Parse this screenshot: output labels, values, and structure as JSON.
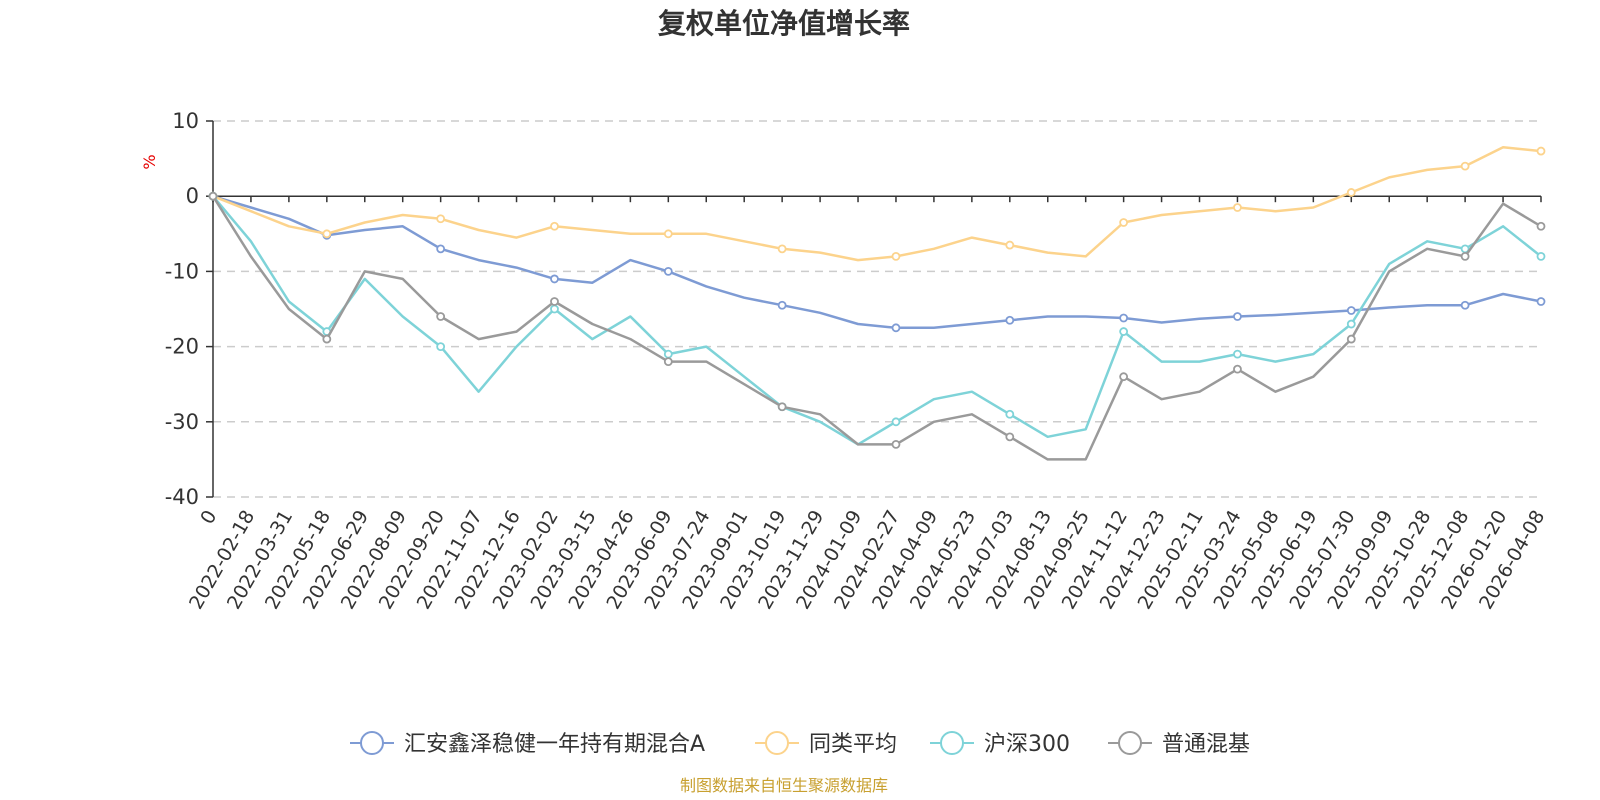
{
  "chart_data": {
    "type": "line",
    "title": "复权单位净值增长率",
    "ylabel": "%",
    "ylim": [
      -40,
      10
    ],
    "yticks": [
      10,
      0,
      -10,
      -20,
      -30,
      -40
    ],
    "grid": true,
    "legend_position": "bottom",
    "source": "制图数据来自恒生聚源数据库",
    "x_tick_labels": [
      "0",
      "2022-02-18",
      "2022-03-31",
      "2022-05-18",
      "2022-06-29",
      "2022-08-09",
      "2022-09-20",
      "2022-11-07",
      "2022-12-16",
      "2023-02-02",
      "2023-03-15",
      "2023-04-26",
      "2023-06-09",
      "2023-07-24",
      "2023-09-01",
      "2023-10-19",
      "2023-11-29",
      "2024-01-09",
      "2024-02-27",
      "2024-04-09",
      "2024-05-23",
      "2024-07-03",
      "2024-08-13",
      "2024-09-25",
      "2024-11-12",
      "2024-12-23",
      "2025-02-11",
      "2025-03-24",
      "2025-05-08",
      "2025-06-19",
      "2025-07-30",
      "2025-09-09",
      "2025-10-28",
      "2025-12-08",
      "2026-01-20",
      "2026-04-08"
    ],
    "series": [
      {
        "name": "汇安鑫泽稳健一年持有期混合A",
        "color": "#7e9bd4",
        "values": [
          0,
          -1.5,
          -3,
          -5.2,
          -4.5,
          -4,
          -7,
          -8.5,
          -9.5,
          -11,
          -11.5,
          -8.5,
          -10,
          -12,
          -13.5,
          -14.5,
          -15.5,
          -17,
          -17.5,
          -17.5,
          -17,
          -16.5,
          -16,
          -16,
          -16.2,
          -16.8,
          -16.3,
          -16,
          -15.8,
          -15.5,
          -15.2,
          -14.8,
          -14.5,
          -14.5,
          -13,
          -14
        ]
      },
      {
        "name": "同类平均",
        "color": "#fcd38c",
        "values": [
          0,
          -2,
          -4,
          -5,
          -3.5,
          -2.5,
          -3,
          -4.5,
          -5.5,
          -4,
          -4.5,
          -5,
          -5,
          -5,
          -6,
          -7,
          -7.5,
          -8.5,
          -8,
          -7,
          -5.5,
          -6.5,
          -7.5,
          -8,
          -3.5,
          -2.5,
          -2,
          -1.5,
          -2,
          -1.5,
          0.5,
          2.5,
          3.5,
          4,
          6.5,
          6
        ]
      },
      {
        "name": "沪深300",
        "color": "#7ed3d8",
        "values": [
          0,
          -6,
          -14,
          -18,
          -11,
          -16,
          -20,
          -26,
          -20,
          -15,
          -19,
          -16,
          -21,
          -20,
          -24,
          -28,
          -30,
          -33,
          -30,
          -27,
          -26,
          -29,
          -32,
          -31,
          -18,
          -22,
          -22,
          -21,
          -22,
          -21,
          -17,
          -9,
          -6,
          -7,
          -4,
          -8
        ]
      },
      {
        "name": "普通混基",
        "color": "#9a9a9a",
        "values": [
          0,
          -8,
          -15,
          -19,
          -10,
          -11,
          -16,
          -19,
          -18,
          -14,
          -17,
          -19,
          -22,
          -22,
          -25,
          -28,
          -29,
          -33,
          -33,
          -30,
          -29,
          -32,
          -35,
          -35,
          -24,
          -27,
          -26,
          -23,
          -26,
          -24,
          -19,
          -10,
          -7,
          -8,
          -1,
          -4
        ]
      }
    ]
  }
}
